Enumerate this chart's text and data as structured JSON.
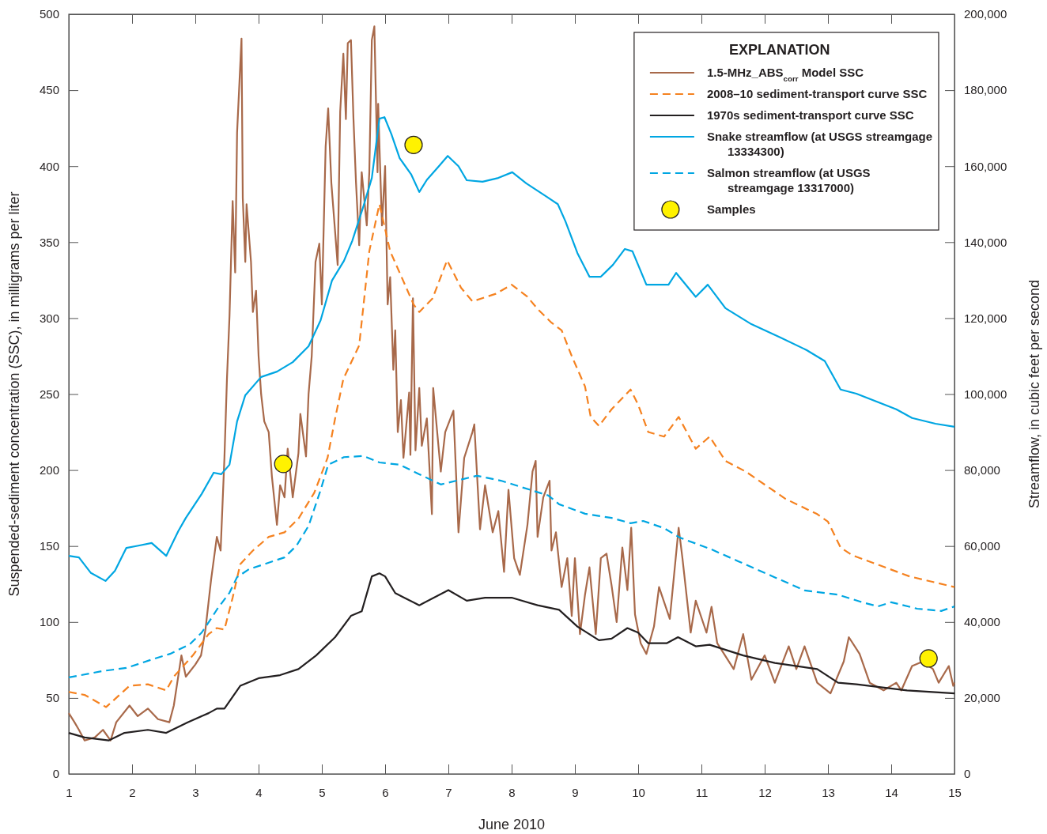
{
  "chart_data": {
    "type": "line",
    "xlabel": "June 2010",
    "ylabel": "Suspended-sediment concentration (SSC), in milligrams per liter",
    "y2label": "Streamflow, in cubic feet per second",
    "legend_title": "EXPLANATION",
    "legend": "top right",
    "xlim": [
      1,
      15
    ],
    "xticks": [
      1,
      2,
      3,
      4,
      5,
      6,
      7,
      8,
      9,
      10,
      11,
      12,
      13,
      14,
      15
    ],
    "ylim": [
      0,
      500
    ],
    "yticks": [
      0,
      50,
      100,
      150,
      200,
      250,
      300,
      350,
      400,
      450,
      500
    ],
    "y2lim": [
      0,
      200000
    ],
    "y2ticks": [
      0,
      {
        "value": 20000,
        "label": "20,000"
      },
      {
        "value": 40000,
        "label": "40,000"
      },
      {
        "value": 60000,
        "label": "60,000"
      },
      {
        "value": 80000,
        "label": "80,000"
      },
      {
        "value": 100000,
        "label": "100,000"
      },
      {
        "value": 120000,
        "label": "120,000"
      },
      {
        "value": 140000,
        "label": "140,000"
      },
      {
        "value": 160000,
        "label": "160,000"
      },
      {
        "value": 180000,
        "label": "180,000"
      },
      {
        "value": 200000,
        "label": "200,000"
      }
    ],
    "series": [
      {
        "name": "1.5-MHz_ABS$_{corr}$ Model SSC",
        "color": "#a8694a",
        "line_style": "solid",
        "x": [
          1.0,
          1.09,
          1.16,
          1.25,
          1.41,
          1.54,
          1.66,
          1.75,
          1.96,
          2.09,
          2.25,
          2.41,
          2.59,
          2.66,
          2.78,
          2.85,
          3.0,
          3.09,
          3.16,
          3.25,
          3.34,
          3.4,
          3.46,
          3.5,
          3.54,
          3.59,
          3.63,
          3.66,
          3.73,
          3.75,
          3.79,
          3.81,
          3.88,
          3.91,
          3.96,
          4.0,
          4.04,
          4.09,
          4.16,
          4.21,
          4.29,
          4.34,
          4.41,
          4.46,
          4.54,
          4.63,
          4.66,
          4.75,
          4.79,
          4.84,
          4.9,
          4.96,
          5.0,
          5.06,
          5.1,
          5.15,
          5.25,
          5.29,
          5.34,
          5.38,
          5.41,
          5.46,
          5.5,
          5.54,
          5.59,
          5.63,
          5.71,
          5.75,
          5.79,
          5.83,
          5.88,
          5.89,
          5.95,
          6.0,
          6.04,
          6.08,
          6.13,
          6.16,
          6.2,
          6.25,
          6.29,
          6.38,
          6.4,
          6.44,
          6.48,
          6.54,
          6.58,
          6.66,
          6.74,
          6.76,
          6.88,
          6.95,
          7.08,
          7.16,
          7.25,
          7.38,
          7.41,
          7.5,
          7.58,
          7.7,
          7.79,
          7.88,
          7.95,
          8.04,
          8.13,
          8.25,
          8.33,
          8.38,
          8.41,
          8.5,
          8.6,
          8.63,
          8.7,
          8.79,
          8.88,
          8.95,
          9.0,
          9.08,
          9.16,
          9.23,
          9.33,
          9.41,
          9.5,
          9.58,
          9.66,
          9.75,
          9.83,
          9.89,
          9.95,
          10.04,
          10.13,
          10.25,
          10.33,
          10.5,
          10.64,
          10.7,
          10.83,
          10.91,
          11.08,
          11.16,
          11.25,
          11.51,
          11.66,
          11.79,
          12.0,
          12.16,
          12.38,
          12.5,
          12.63,
          12.83,
          13.04,
          13.25,
          13.33,
          13.5,
          13.66,
          13.88,
          14.08,
          14.16,
          14.33,
          14.5,
          14.66,
          14.75,
          14.91,
          14.98,
          15.0
        ],
        "values": [
          40,
          34,
          29,
          22,
          24,
          29,
          22,
          34,
          45,
          38,
          43,
          36,
          34,
          45,
          78,
          64,
          72,
          78,
          95,
          128,
          156,
          147,
          208,
          260,
          301,
          377,
          330,
          422,
          484,
          379,
          337,
          375,
          337,
          304,
          318,
          275,
          250,
          232,
          225,
          196,
          164,
          190,
          182,
          214,
          182,
          211,
          237,
          209,
          250,
          275,
          337,
          349,
          309,
          413,
          438,
          389,
          335,
          436,
          474,
          431,
          481,
          483,
          431,
          389,
          348,
          396,
          361,
          396,
          483,
          492,
          396,
          441,
          361,
          400,
          309,
          327,
          266,
          292,
          225,
          246,
          208,
          251,
          210,
          313,
          213,
          254,
          216,
          234,
          171,
          254,
          199,
          225,
          239,
          159,
          208,
          225,
          230,
          161,
          190,
          159,
          173,
          133,
          187,
          142,
          131,
          164,
          199,
          206,
          156,
          182,
          193,
          147,
          159,
          123,
          142,
          104,
          142,
          92,
          118,
          136,
          92,
          142,
          145,
          124,
          100,
          149,
          121,
          162,
          105,
          86,
          79,
          97,
          123,
          102,
          162,
          142,
          93,
          114,
          93,
          110,
          86,
          69,
          92,
          62,
          78,
          60,
          84,
          69,
          84,
          60,
          53,
          74,
          90,
          79,
          60,
          55,
          60,
          55,
          71,
          74,
          69,
          60,
          71,
          58,
          60
        ]
      },
      {
        "name": "2008–10 sediment-transport curve SSC",
        "color": "#f58220",
        "line_style": "dashed",
        "x": [
          1.0,
          1.25,
          1.59,
          1.96,
          2.25,
          2.54,
          2.66,
          2.96,
          3.21,
          3.34,
          3.46,
          3.59,
          3.71,
          3.91,
          4.16,
          4.41,
          4.63,
          4.88,
          5.09,
          5.21,
          5.34,
          5.59,
          5.75,
          5.91,
          6.08,
          6.25,
          6.45,
          6.54,
          6.75,
          6.98,
          7.2,
          7.38,
          7.75,
          8.0,
          8.25,
          8.41,
          8.63,
          8.79,
          8.95,
          9.16,
          9.25,
          9.38,
          9.58,
          9.88,
          10.0,
          10.16,
          10.41,
          10.64,
          10.91,
          11.13,
          11.38,
          11.7,
          12.33,
          12.83,
          13.0,
          13.2,
          13.38,
          14.29,
          15.0
        ],
        "values": [
          54,
          52,
          44,
          58,
          59,
          55,
          64,
          78,
          92,
          96,
          95,
          116,
          138,
          147,
          156,
          159,
          168,
          185,
          208,
          234,
          260,
          282,
          344,
          375,
          344,
          328,
          309,
          304,
          313,
          338,
          320,
          311,
          316,
          322,
          314,
          306,
          297,
          292,
          275,
          255,
          235,
          229,
          240,
          253,
          243,
          225,
          222,
          235,
          214,
          222,
          206,
          199,
          181,
          171,
          166,
          149,
          144,
          130,
          123
        ]
      },
      {
        "name": "1970s sediment-transport curve SSC",
        "color": "#231f20",
        "line_style": "solid",
        "x": [
          1.0,
          1.25,
          1.63,
          1.88,
          2.25,
          2.54,
          2.88,
          3.21,
          3.34,
          3.46,
          3.71,
          4.0,
          4.34,
          4.63,
          4.91,
          5.21,
          5.46,
          5.63,
          5.79,
          5.91,
          6.0,
          6.16,
          6.54,
          7.0,
          7.29,
          7.58,
          8.0,
          8.41,
          8.75,
          9.04,
          9.38,
          9.58,
          9.83,
          10.0,
          10.16,
          10.45,
          10.63,
          10.91,
          11.13,
          11.66,
          12.16,
          12.83,
          13.16,
          13.45,
          14.25,
          15.0
        ],
        "values": [
          27,
          24,
          22,
          27,
          29,
          27,
          34,
          40,
          43,
          43,
          58,
          63,
          65,
          69,
          78,
          90,
          104,
          107,
          130,
          132,
          130,
          119,
          111,
          121,
          114,
          116,
          116,
          111,
          108,
          97,
          88,
          89,
          96,
          93,
          86,
          86,
          90,
          84,
          85,
          78,
          73,
          69,
          60,
          59,
          55,
          53
        ]
      },
      {
        "name": "Snake streamflow (at USGS streamgage 13334300)",
        "axis": "y2",
        "color": "#00a6e2",
        "line_style": "solid",
        "x": [
          1.0,
          1.16,
          1.35,
          1.58,
          1.73,
          1.91,
          2.1,
          2.31,
          2.54,
          2.73,
          2.85,
          3.1,
          3.29,
          3.41,
          3.54,
          3.66,
          3.79,
          4.04,
          4.29,
          4.54,
          4.79,
          4.98,
          5.16,
          5.35,
          5.48,
          5.66,
          5.79,
          5.91,
          5.99,
          6.1,
          6.23,
          6.41,
          6.54,
          6.66,
          6.85,
          6.99,
          7.16,
          7.29,
          7.54,
          7.79,
          8.01,
          8.23,
          8.54,
          8.73,
          8.85,
          9.04,
          9.23,
          9.41,
          9.6,
          9.79,
          9.91,
          10.13,
          10.48,
          10.6,
          10.91,
          11.1,
          11.38,
          11.79,
          12.25,
          12.66,
          12.95,
          13.2,
          13.45,
          14.08,
          14.33,
          14.7,
          15.0
        ],
        "values": [
          57400,
          57000,
          52900,
          50800,
          53500,
          59500,
          60100,
          60800,
          57400,
          63900,
          67400,
          73700,
          79300,
          78900,
          81400,
          92800,
          99700,
          104500,
          105900,
          108400,
          112600,
          119400,
          129900,
          135100,
          140300,
          149600,
          156900,
          172500,
          172900,
          168400,
          162100,
          157900,
          153200,
          156400,
          160000,
          162700,
          160000,
          156300,
          155900,
          156900,
          158400,
          155500,
          152100,
          150000,
          145500,
          137100,
          130900,
          130900,
          134000,
          138200,
          137600,
          128800,
          128800,
          131900,
          125600,
          128800,
          122600,
          118400,
          114900,
          111600,
          108700,
          101200,
          100100,
          96000,
          93700,
          92200,
          91400
        ]
      },
      {
        "name": "Salmon streamflow (at USGS streamgage 13317000)",
        "axis": "y2",
        "color": "#00a6e2",
        "line_style": "dashed",
        "x": [
          1.0,
          1.54,
          1.91,
          2.29,
          2.6,
          2.91,
          3.1,
          3.23,
          3.35,
          3.54,
          3.66,
          3.85,
          4.23,
          4.41,
          4.6,
          4.79,
          4.98,
          5.1,
          5.35,
          5.66,
          5.91,
          6.23,
          6.54,
          6.88,
          7.45,
          7.83,
          8.58,
          8.75,
          9.16,
          9.58,
          9.88,
          10.08,
          10.41,
          10.66,
          11.16,
          11.58,
          12.1,
          12.63,
          13.16,
          13.54,
          13.79,
          14.0,
          14.41,
          14.79,
          15.0
        ],
        "values": [
          25400,
          27100,
          27900,
          30000,
          31600,
          34100,
          37200,
          40400,
          43500,
          47700,
          51800,
          53900,
          56000,
          57000,
          60100,
          65300,
          74700,
          81400,
          83400,
          83700,
          82000,
          81400,
          78900,
          76200,
          78500,
          77200,
          73300,
          71000,
          68500,
          67400,
          66000,
          66600,
          64700,
          62200,
          59100,
          56000,
          52200,
          48300,
          47200,
          45200,
          44100,
          45200,
          43500,
          42900,
          44100
        ]
      },
      {
        "name": "Samples",
        "type": "scatter",
        "marker": "circle",
        "color": "#fff200",
        "x": [
          4.39,
          6.45,
          14.59
        ],
        "values": [
          204,
          414,
          76
        ]
      }
    ]
  }
}
